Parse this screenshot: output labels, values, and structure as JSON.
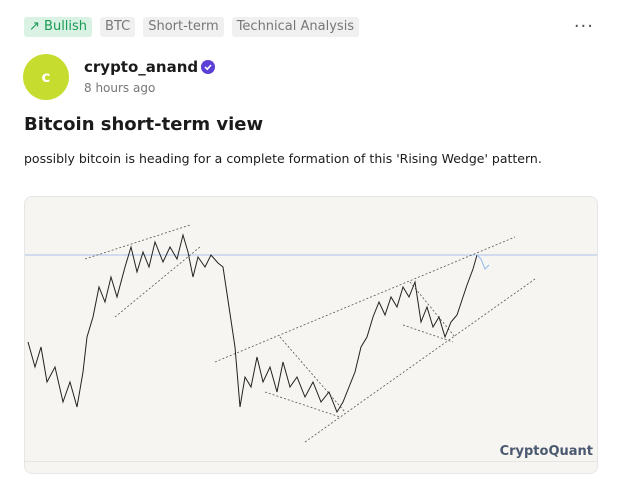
{
  "tags": [
    "Bullish",
    "BTC",
    "Short-term",
    "Technical Analysis"
  ],
  "author": {
    "avatar_letter": "c",
    "name": "crypto_anand",
    "time": "8 hours ago"
  },
  "post": {
    "title": "Bitcoin short-term view",
    "body": "possibly bitcoin is heading for a complete formation of this 'Rising Wedge' pattern.",
    "image_watermark": "CryptoQuant"
  }
}
